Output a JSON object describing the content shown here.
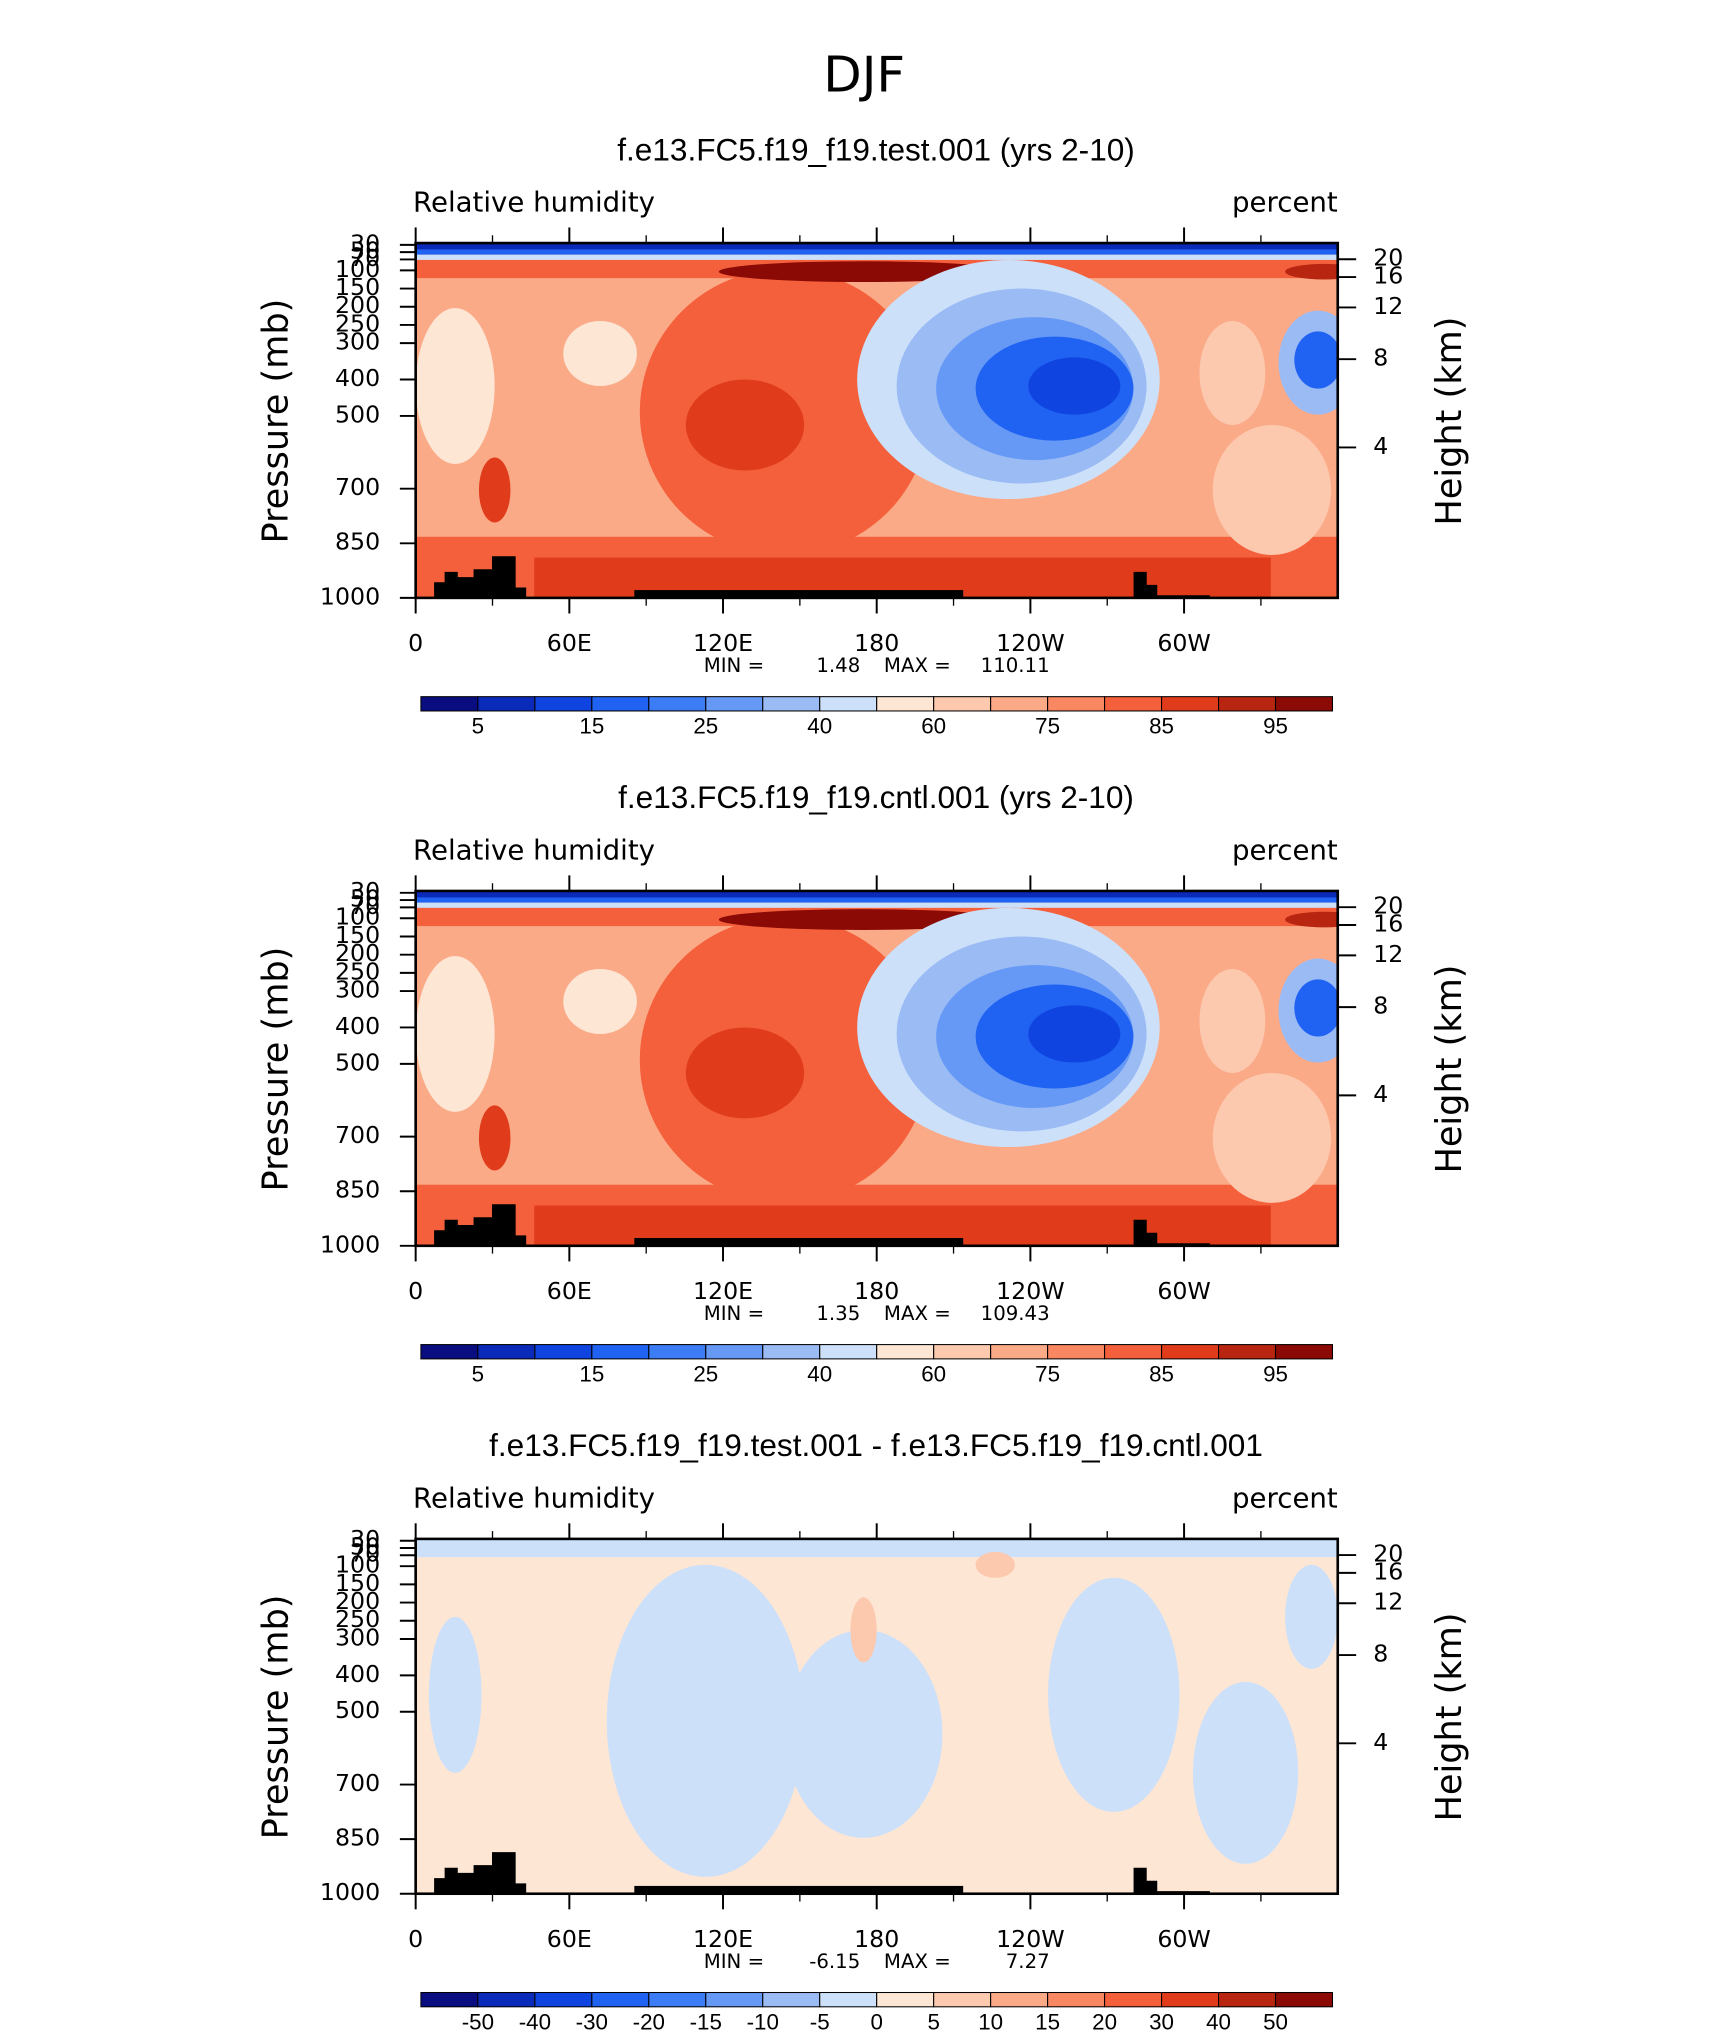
{
  "suptitle": "DJF",
  "chart_data": [
    {
      "type": "contour",
      "title": "f.e13.FC5.f19_f19.test.001 (yrs 2-10)",
      "left_label": "Relative humidity",
      "right_label": "percent",
      "ylabel": "Pressure (mb)",
      "y2label": "Height (km)",
      "xlim": [
        0,
        360
      ],
      "xticks": [
        0,
        {
          "value": 60,
          "label": "60E"
        },
        {
          "value": 120,
          "label": "120E"
        },
        180,
        {
          "value": 240,
          "label": "120W"
        },
        {
          "value": 300,
          "label": "60W"
        }
      ],
      "xminorticks": [
        30,
        90,
        150,
        210,
        270,
        330
      ],
      "ylim": [
        1000,
        25
      ],
      "yticks": [
        30,
        50,
        70,
        100,
        150,
        200,
        250,
        300,
        400,
        500,
        700,
        850,
        1000
      ],
      "y2lim": [
        0,
        28
      ],
      "y2ticks": [
        20,
        16,
        12,
        8,
        4
      ],
      "min_label": "MIN =",
      "min": 1.48,
      "max_label": "MAX =",
      "max": 110.11,
      "field": "rh",
      "colorbar": {
        "colors": [
          "#0a0d80",
          "#0a2ab9",
          "#0f44e0",
          "#2063f3",
          "#3c7df5",
          "#6699f5",
          "#9bbbf5",
          "#cce0fa",
          "#fde6d4",
          "#fcc8ae",
          "#fbaa88",
          "#f98762",
          "#f4603b",
          "#e03c1c",
          "#b82612",
          "#8b0a05"
        ],
        "levels": [
          5,
          null,
          15,
          null,
          25,
          null,
          40,
          null,
          60,
          null,
          75,
          null,
          85,
          null,
          95
        ]
      }
    },
    {
      "type": "contour",
      "title": "f.e13.FC5.f19_f19.cntl.001 (yrs 2-10)",
      "left_label": "Relative humidity",
      "right_label": "percent",
      "ylabel": "Pressure (mb)",
      "y2label": "Height (km)",
      "xlim": [
        0,
        360
      ],
      "xticks": [
        0,
        {
          "value": 60,
          "label": "60E"
        },
        {
          "value": 120,
          "label": "120E"
        },
        180,
        {
          "value": 240,
          "label": "120W"
        },
        {
          "value": 300,
          "label": "60W"
        }
      ],
      "xminorticks": [
        30,
        90,
        150,
        210,
        270,
        330
      ],
      "ylim": [
        1000,
        25
      ],
      "yticks": [
        30,
        50,
        70,
        100,
        150,
        200,
        250,
        300,
        400,
        500,
        700,
        850,
        1000
      ],
      "y2lim": [
        0,
        28
      ],
      "y2ticks": [
        20,
        16,
        12,
        8,
        4
      ],
      "min_label": "MIN =",
      "min": 1.35,
      "max_label": "MAX =",
      "max": 109.43,
      "field": "rh",
      "colorbar": {
        "colors": [
          "#0a0d80",
          "#0a2ab9",
          "#0f44e0",
          "#2063f3",
          "#3c7df5",
          "#6699f5",
          "#9bbbf5",
          "#cce0fa",
          "#fde6d4",
          "#fcc8ae",
          "#fbaa88",
          "#f98762",
          "#f4603b",
          "#e03c1c",
          "#b82612",
          "#8b0a05"
        ],
        "levels": [
          5,
          null,
          15,
          null,
          25,
          null,
          40,
          null,
          60,
          null,
          75,
          null,
          85,
          null,
          95
        ]
      }
    },
    {
      "type": "contour",
      "title": "f.e13.FC5.f19_f19.test.001 - f.e13.FC5.f19_f19.cntl.001",
      "left_label": "Relative humidity",
      "right_label": "percent",
      "ylabel": "Pressure (mb)",
      "y2label": "Height (km)",
      "xlim": [
        0,
        360
      ],
      "xticks": [
        0,
        {
          "value": 60,
          "label": "60E"
        },
        {
          "value": 120,
          "label": "120E"
        },
        180,
        {
          "value": 240,
          "label": "120W"
        },
        {
          "value": 300,
          "label": "60W"
        }
      ],
      "xminorticks": [
        30,
        90,
        150,
        210,
        270,
        330
      ],
      "ylim": [
        1000,
        25
      ],
      "yticks": [
        30,
        50,
        70,
        100,
        150,
        200,
        250,
        300,
        400,
        500,
        700,
        850,
        1000
      ],
      "y2lim": [
        0,
        28
      ],
      "y2ticks": [
        20,
        16,
        12,
        8,
        4
      ],
      "min_label": "MIN =",
      "min": -6.15,
      "max_label": "MAX =",
      "max": 7.27,
      "field": "diff",
      "colorbar": {
        "colors": [
          "#0a0d80",
          "#0a2ab9",
          "#0f44e0",
          "#2063f3",
          "#3c7df5",
          "#6699f5",
          "#9bbbf5",
          "#cce0fa",
          "#fde6d4",
          "#fcc8ae",
          "#fbaa88",
          "#f98762",
          "#f4603b",
          "#e03c1c",
          "#b82612",
          "#8b0a05"
        ],
        "levels": [
          -50,
          -40,
          -30,
          -20,
          -15,
          -10,
          -5,
          0,
          5,
          10,
          15,
          20,
          30,
          40,
          50
        ]
      }
    }
  ]
}
